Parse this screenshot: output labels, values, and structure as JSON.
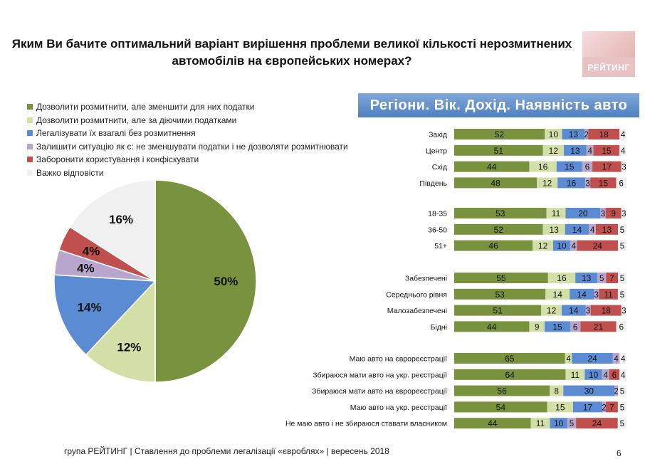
{
  "header": {
    "title_line1": "Яким Ви бачите оптимальний варіант вирішення проблеми великої кількості нерозмитнених",
    "title_line2": "автомобілів на європейських номерах?",
    "logo_text": "РЕЙТИНГ"
  },
  "section_title": "Регіони. Вік. Дохід. Наявність авто",
  "colors": [
    "#79923d",
    "#d2dfa7",
    "#5b8bd2",
    "#b8a6cc",
    "#c0504d",
    "#f0f0f0"
  ],
  "legend": [
    "Дозволити розмитнити, але зменшити для них податки",
    "Дозволити розмитнити, але за діючими податками",
    "Легалізувати їх взагалі без розмитнення",
    "Залишити ситуацію як є: не зменшувати податки і не дозволяти розмитнювати",
    "Заборонити користування і конфіскувати",
    "Важко відповісти"
  ],
  "chart_data": [
    {
      "type": "pie",
      "labels": [
        "Дозволити розмитнити, але зменшити для них податки",
        "Дозволити розмитнити, але за діючими податками",
        "Легалізувати їх взагалі без розмитнення",
        "Залишити ситуацію як є: не зменшувати податки і не дозволяти розмитнювати",
        "Заборонити користування і конфіскувати",
        "Важко відповісти"
      ],
      "values": [
        50,
        12,
        14,
        4,
        4,
        16
      ],
      "value_labels": [
        "50%",
        "12%",
        "14%",
        "4%",
        "4%",
        "16%"
      ]
    },
    {
      "type": "bar",
      "orientation": "horizontal",
      "stacked": true,
      "groups": [
        {
          "rows": [
            {
              "label": "Захід",
              "values": [
                52,
                10,
                13,
                2,
                18,
                4
              ]
            },
            {
              "label": "Центр",
              "values": [
                51,
                12,
                13,
                4,
                15,
                4
              ]
            },
            {
              "label": "Схід",
              "values": [
                44,
                16,
                15,
                6,
                17,
                3
              ]
            },
            {
              "label": "Південь",
              "values": [
                48,
                12,
                16,
                3,
                15,
                6
              ]
            }
          ]
        },
        {
          "rows": [
            {
              "label": "18-35",
              "values": [
                53,
                11,
                20,
                3,
                9,
                3
              ]
            },
            {
              "label": "36-50",
              "values": [
                52,
                13,
                14,
                4,
                13,
                5
              ]
            },
            {
              "label": "51+",
              "values": [
                46,
                12,
                10,
                4,
                24,
                5
              ]
            }
          ]
        },
        {
          "rows": [
            {
              "label": "Забезпечені",
              "values": [
                55,
                16,
                13,
                5,
                7,
                5
              ]
            },
            {
              "label": "Середнього рівня",
              "values": [
                53,
                14,
                14,
                3,
                11,
                5
              ]
            },
            {
              "label": "Малозабезпечені",
              "values": [
                51,
                12,
                14,
                3,
                18,
                3
              ]
            },
            {
              "label": "Бідні",
              "values": [
                44,
                9,
                15,
                6,
                21,
                6
              ]
            }
          ]
        },
        {
          "rows": [
            {
              "label": "Маю авто на єврореєстрації",
              "values": [
                65,
                4,
                24,
                4,
                0,
                4
              ]
            },
            {
              "label": "Збираюся мати авто на укр. реєстрації",
              "values": [
                64,
                11,
                10,
                4,
                6,
                4
              ]
            },
            {
              "label": "Збираюся мати авто на єврореєстрації",
              "values": [
                56,
                8,
                30,
                2,
                0,
                5
              ]
            },
            {
              "label": "Маю авто на укр. реєстрації",
              "values": [
                54,
                15,
                17,
                2,
                7,
                5
              ]
            },
            {
              "label": "Не маю авто і не збираюся ставати власником",
              "values": [
                44,
                11,
                10,
                5,
                24,
                5
              ]
            }
          ]
        }
      ]
    }
  ],
  "footer": "група РЕЙТИНГ |  Ставлення до проблеми легалізації «євроблях» | вересень 2018",
  "page_number": "6"
}
